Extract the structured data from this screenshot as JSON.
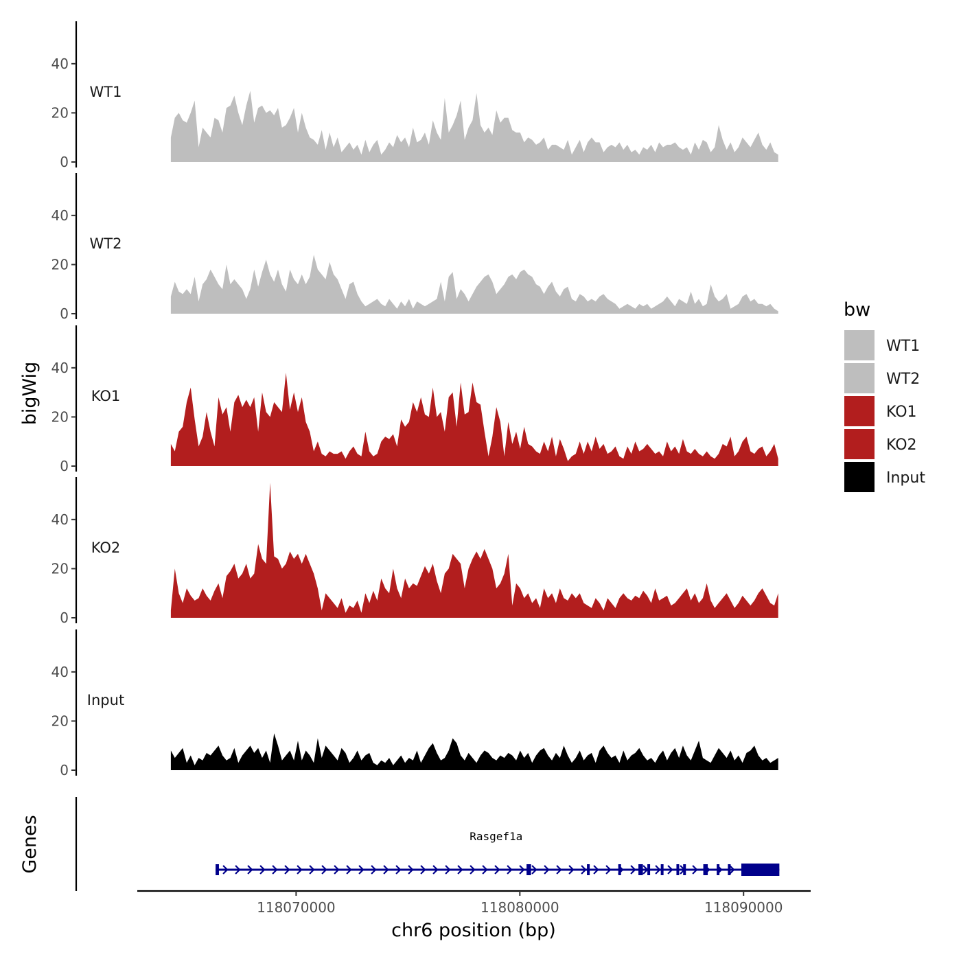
{
  "chart_data": {
    "type": "area",
    "ylabel": "bigWig",
    "xlabel": "chr6 position (bp)",
    "xlim": [
      118062900,
      118093000
    ],
    "data_x_range": [
      118064400,
      118091550
    ],
    "x_ticks": [
      {
        "value": 118070000,
        "label": "118070000"
      },
      {
        "value": 118080000,
        "label": "118080000"
      },
      {
        "value": 118090000,
        "label": "118090000"
      }
    ],
    "ylim": [
      0,
      57
    ],
    "y_ticks": [
      {
        "value": 0,
        "label": "0"
      },
      {
        "value": 20,
        "label": "20"
      },
      {
        "value": 40,
        "label": "40"
      }
    ],
    "legend": {
      "title": "bw",
      "position": "right",
      "entries": [
        {
          "label": "WT1",
          "color": "#bebebe"
        },
        {
          "label": "WT2",
          "color": "#bebebe"
        },
        {
          "label": "KO1",
          "color": "#b21e1e"
        },
        {
          "label": "KO2",
          "color": "#b21e1e"
        },
        {
          "label": "Input",
          "color": "#000000"
        }
      ]
    },
    "series": [
      {
        "name": "WT1",
        "color": "#bebebe",
        "values": [
          10,
          18,
          20,
          17,
          16,
          20,
          25,
          6,
          14,
          12,
          10,
          18,
          17,
          12,
          22,
          23,
          27,
          20,
          15,
          23,
          29,
          16,
          22,
          23,
          20,
          21,
          19,
          22,
          14,
          15,
          18,
          22,
          12,
          20,
          14,
          10,
          9,
          7,
          13,
          5,
          12,
          6,
          10,
          4,
          6,
          8,
          5,
          7,
          3,
          9,
          4,
          7,
          9,
          3,
          5,
          8,
          6,
          11,
          8,
          10,
          6,
          14,
          8,
          9,
          12,
          7,
          17,
          12,
          9,
          26,
          12,
          15,
          19,
          25,
          9,
          14,
          17,
          28,
          15,
          12,
          14,
          11,
          21,
          16,
          18,
          18,
          13,
          12,
          12,
          8,
          10,
          9,
          7,
          8,
          10,
          5,
          7,
          7,
          6,
          5,
          9,
          3,
          6,
          9,
          4,
          8,
          10,
          8,
          8,
          4,
          6,
          7,
          6,
          8,
          5,
          7,
          4,
          5,
          3,
          6,
          5,
          7,
          4,
          8,
          6,
          7,
          7,
          8,
          6,
          5,
          6,
          3,
          8,
          5,
          9,
          8,
          4,
          6,
          15,
          9,
          5,
          8,
          4,
          6,
          10,
          8,
          6,
          9,
          12,
          7,
          5,
          8,
          4,
          3
        ]
      },
      {
        "name": "WT2",
        "color": "#bebebe",
        "values": [
          7,
          13,
          9,
          8,
          10,
          8,
          15,
          5,
          12,
          14,
          18,
          15,
          12,
          10,
          20,
          12,
          14,
          12,
          10,
          6,
          10,
          18,
          11,
          17,
          22,
          16,
          13,
          18,
          12,
          9,
          18,
          14,
          12,
          16,
          12,
          15,
          24,
          18,
          16,
          14,
          21,
          16,
          14,
          10,
          6,
          12,
          13,
          8,
          5,
          3,
          4,
          5,
          6,
          4,
          3,
          6,
          4,
          2,
          5,
          3,
          6,
          2,
          5,
          4,
          3,
          4,
          5,
          6,
          13,
          5,
          15,
          17,
          6,
          10,
          8,
          5,
          8,
          11,
          13,
          15,
          16,
          13,
          8,
          10,
          12,
          15,
          16,
          14,
          17,
          18,
          16,
          15,
          12,
          11,
          8,
          11,
          13,
          9,
          7,
          10,
          11,
          6,
          5,
          8,
          7,
          5,
          6,
          5,
          7,
          8,
          6,
          5,
          4,
          2,
          3,
          4,
          3,
          2,
          4,
          3,
          4,
          2,
          3,
          4,
          5,
          7,
          5,
          3,
          6,
          5,
          4,
          9,
          4,
          6,
          3,
          4,
          12,
          7,
          5,
          6,
          8,
          2,
          3,
          4,
          7,
          8,
          5,
          6,
          4,
          4,
          3,
          4,
          2,
          1
        ]
      },
      {
        "name": "KO1",
        "color": "#b21e1e",
        "values": [
          9,
          6,
          14,
          16,
          26,
          32,
          19,
          8,
          12,
          22,
          14,
          8,
          28,
          21,
          24,
          14,
          26,
          29,
          24,
          27,
          24,
          28,
          14,
          30,
          22,
          20,
          26,
          24,
          22,
          38,
          23,
          30,
          22,
          28,
          18,
          14,
          6,
          10,
          5,
          4,
          6,
          5,
          5,
          6,
          3,
          6,
          8,
          5,
          4,
          14,
          6,
          4,
          5,
          10,
          12,
          11,
          13,
          8,
          19,
          16,
          18,
          26,
          22,
          28,
          21,
          20,
          32,
          20,
          22,
          14,
          28,
          30,
          16,
          34,
          21,
          22,
          34,
          26,
          25,
          14,
          4,
          12,
          24,
          18,
          4,
          18,
          9,
          14,
          7,
          16,
          9,
          8,
          6,
          5,
          10,
          6,
          12,
          4,
          11,
          7,
          2,
          4,
          5,
          10,
          5,
          10,
          6,
          12,
          7,
          9,
          5,
          6,
          8,
          4,
          3,
          8,
          5,
          10,
          6,
          7,
          9,
          7,
          5,
          6,
          4,
          10,
          6,
          8,
          5,
          11,
          6,
          5,
          7,
          5,
          4,
          6,
          4,
          3,
          5,
          9,
          8,
          12,
          4,
          6,
          10,
          12,
          6,
          5,
          7,
          8,
          4,
          6,
          9,
          3
        ]
      },
      {
        "name": "KO2",
        "color": "#b21e1e",
        "values": [
          3,
          20,
          10,
          6,
          12,
          9,
          7,
          8,
          12,
          9,
          7,
          11,
          14,
          8,
          17,
          19,
          22,
          16,
          18,
          22,
          16,
          18,
          30,
          24,
          22,
          55,
          25,
          24,
          20,
          22,
          27,
          24,
          26,
          22,
          26,
          22,
          18,
          12,
          3,
          10,
          8,
          6,
          4,
          8,
          2,
          5,
          4,
          7,
          2,
          10,
          6,
          11,
          7,
          16,
          12,
          10,
          20,
          12,
          8,
          16,
          12,
          14,
          13,
          17,
          21,
          18,
          22,
          15,
          10,
          18,
          20,
          26,
          24,
          22,
          12,
          20,
          24,
          27,
          24,
          28,
          24,
          20,
          12,
          14,
          18,
          26,
          5,
          14,
          12,
          8,
          10,
          6,
          8,
          4,
          12,
          8,
          10,
          6,
          12,
          8,
          7,
          10,
          8,
          10,
          6,
          5,
          4,
          8,
          6,
          3,
          8,
          6,
          4,
          8,
          10,
          8,
          7,
          9,
          8,
          11,
          9,
          6,
          12,
          7,
          8,
          9,
          5,
          6,
          8,
          10,
          12,
          7,
          10,
          6,
          8,
          14,
          7,
          4,
          6,
          8,
          10,
          7,
          4,
          6,
          9,
          7,
          5,
          7,
          10,
          12,
          9,
          6,
          5,
          10
        ]
      },
      {
        "name": "Input",
        "color": "#000000",
        "values": [
          8,
          5,
          7,
          9,
          3,
          6,
          2,
          5,
          4,
          7,
          6,
          8,
          10,
          6,
          4,
          5,
          9,
          3,
          6,
          8,
          10,
          7,
          9,
          5,
          8,
          3,
          15,
          10,
          4,
          6,
          8,
          4,
          12,
          4,
          8,
          6,
          3,
          13,
          5,
          10,
          8,
          6,
          4,
          9,
          7,
          3,
          5,
          8,
          4,
          6,
          7,
          3,
          2,
          4,
          3,
          5,
          2,
          4,
          6,
          3,
          5,
          4,
          8,
          3,
          6,
          9,
          11,
          7,
          4,
          5,
          8,
          13,
          11,
          6,
          4,
          7,
          5,
          3,
          6,
          8,
          7,
          5,
          4,
          6,
          5,
          7,
          6,
          4,
          8,
          5,
          7,
          3,
          6,
          8,
          9,
          6,
          4,
          7,
          5,
          10,
          6,
          3,
          5,
          8,
          4,
          6,
          7,
          3,
          8,
          10,
          7,
          5,
          6,
          3,
          8,
          4,
          6,
          7,
          9,
          6,
          4,
          5,
          3,
          6,
          8,
          4,
          7,
          9,
          5,
          10,
          6,
          4,
          8,
          12,
          5,
          4,
          3,
          6,
          9,
          7,
          5,
          8,
          4,
          6,
          3,
          7,
          8,
          10,
          6,
          4,
          5,
          3,
          4,
          5
        ]
      }
    ],
    "genes": {
      "label": "Genes",
      "gene_name": "Rasgef1a",
      "strand": "+",
      "start": 118066400,
      "end": 118091600,
      "exons": [
        {
          "start": 118066400,
          "end": 118066550
        },
        {
          "start": 118080300,
          "end": 118080500
        },
        {
          "start": 118083000,
          "end": 118083100
        },
        {
          "start": 118084400,
          "end": 118084500
        },
        {
          "start": 118085300,
          "end": 118085500
        },
        {
          "start": 118085700,
          "end": 118085780
        },
        {
          "start": 118086300,
          "end": 118086400
        },
        {
          "start": 118087000,
          "end": 118087080
        },
        {
          "start": 118087300,
          "end": 118087400
        },
        {
          "start": 118088200,
          "end": 118088400
        },
        {
          "start": 118088800,
          "end": 118088900
        },
        {
          "start": 118089300,
          "end": 118089400
        },
        {
          "start": 118089900,
          "end": 118091600
        }
      ]
    }
  }
}
